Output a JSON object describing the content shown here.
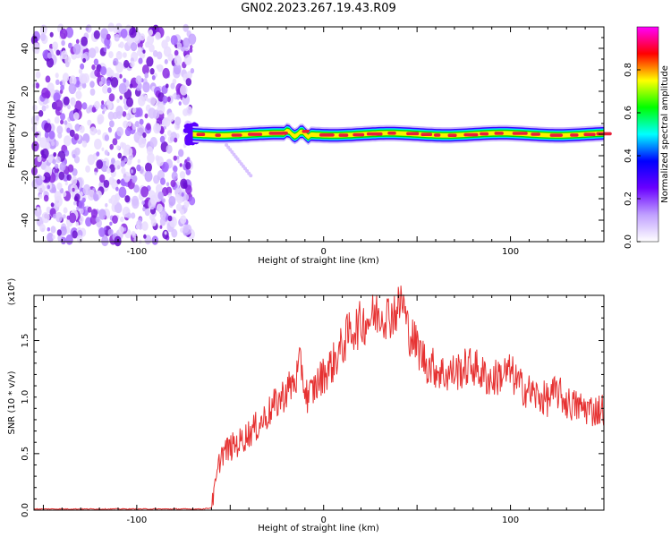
{
  "title": "GN02.2023.267.19.43.R09",
  "colors": {
    "snr_line": "#e63232",
    "noise_dots": "#8a2be2",
    "baseline_red": "#e8203a"
  },
  "chart_data": [
    {
      "type": "heatmap",
      "title": "GN02.2023.267.19.43.R09",
      "xlabel": "Height of straight line (km)",
      "ylabel": "Frequency (Hz)",
      "xlim": [
        -155,
        150
      ],
      "ylim": [
        -50,
        50
      ],
      "x_ticks": [
        -100,
        0,
        100
      ],
      "y_ticks": [
        -40,
        -20,
        0,
        20,
        40
      ],
      "noise_region_x": [
        -155,
        -70
      ],
      "signal_region_x": [
        -70,
        150
      ],
      "signal_frequency_hz": 0,
      "colorbar": {
        "label": "Normalized spectral amplitude",
        "range": [
          0,
          1
        ],
        "ticks": [
          "0.0",
          "0.2",
          "0.4",
          "0.6",
          "0.8"
        ],
        "colormap": [
          "#ffffff",
          "#c0a0ff",
          "#6a00ff",
          "#0000ff",
          "#00ffff",
          "#00ff00",
          "#ffff00",
          "#ff0000",
          "#ff00ff"
        ]
      }
    },
    {
      "type": "line",
      "xlabel": "Height of straight line (km)",
      "ylabel": "SNR (10 * v/v)",
      "y_multiplier": "(x10⁴)",
      "xlim": [
        -155,
        150
      ],
      "ylim": [
        0,
        1.9
      ],
      "x_ticks": [
        -100,
        0,
        100
      ],
      "y_ticks": [
        "0.0",
        "0.5",
        "1.0",
        "1.5"
      ],
      "series": [
        {
          "x": [
            -155,
            -140,
            -120,
            -100,
            -80,
            -65,
            -60,
            -57,
            -55,
            -50,
            -45,
            -40,
            -35,
            -30,
            -25,
            -20,
            -15,
            -12,
            -10,
            -8,
            -5,
            0,
            5,
            10,
            13,
            15,
            18,
            20,
            25,
            30,
            35,
            40,
            42,
            45,
            50,
            55,
            60,
            65,
            70,
            75,
            80,
            85,
            90,
            95,
            100,
            105,
            110,
            115,
            120,
            125,
            130,
            135,
            140,
            145,
            150
          ],
          "values": [
            0.01,
            0.01,
            0.01,
            0.01,
            0.01,
            0.01,
            0.02,
            0.3,
            0.5,
            0.55,
            0.6,
            0.68,
            0.75,
            0.85,
            0.95,
            1.05,
            1.15,
            1.3,
            1.05,
            1.0,
            1.08,
            1.2,
            1.3,
            1.45,
            1.55,
            1.6,
            1.62,
            1.65,
            1.7,
            1.75,
            1.72,
            1.78,
            1.88,
            1.6,
            1.45,
            1.3,
            1.25,
            1.2,
            1.22,
            1.25,
            1.28,
            1.2,
            1.15,
            1.2,
            1.22,
            1.1,
            1.05,
            1.0,
            0.98,
            1.05,
            0.95,
            0.92,
            0.9,
            0.88,
            0.9
          ]
        }
      ]
    }
  ]
}
